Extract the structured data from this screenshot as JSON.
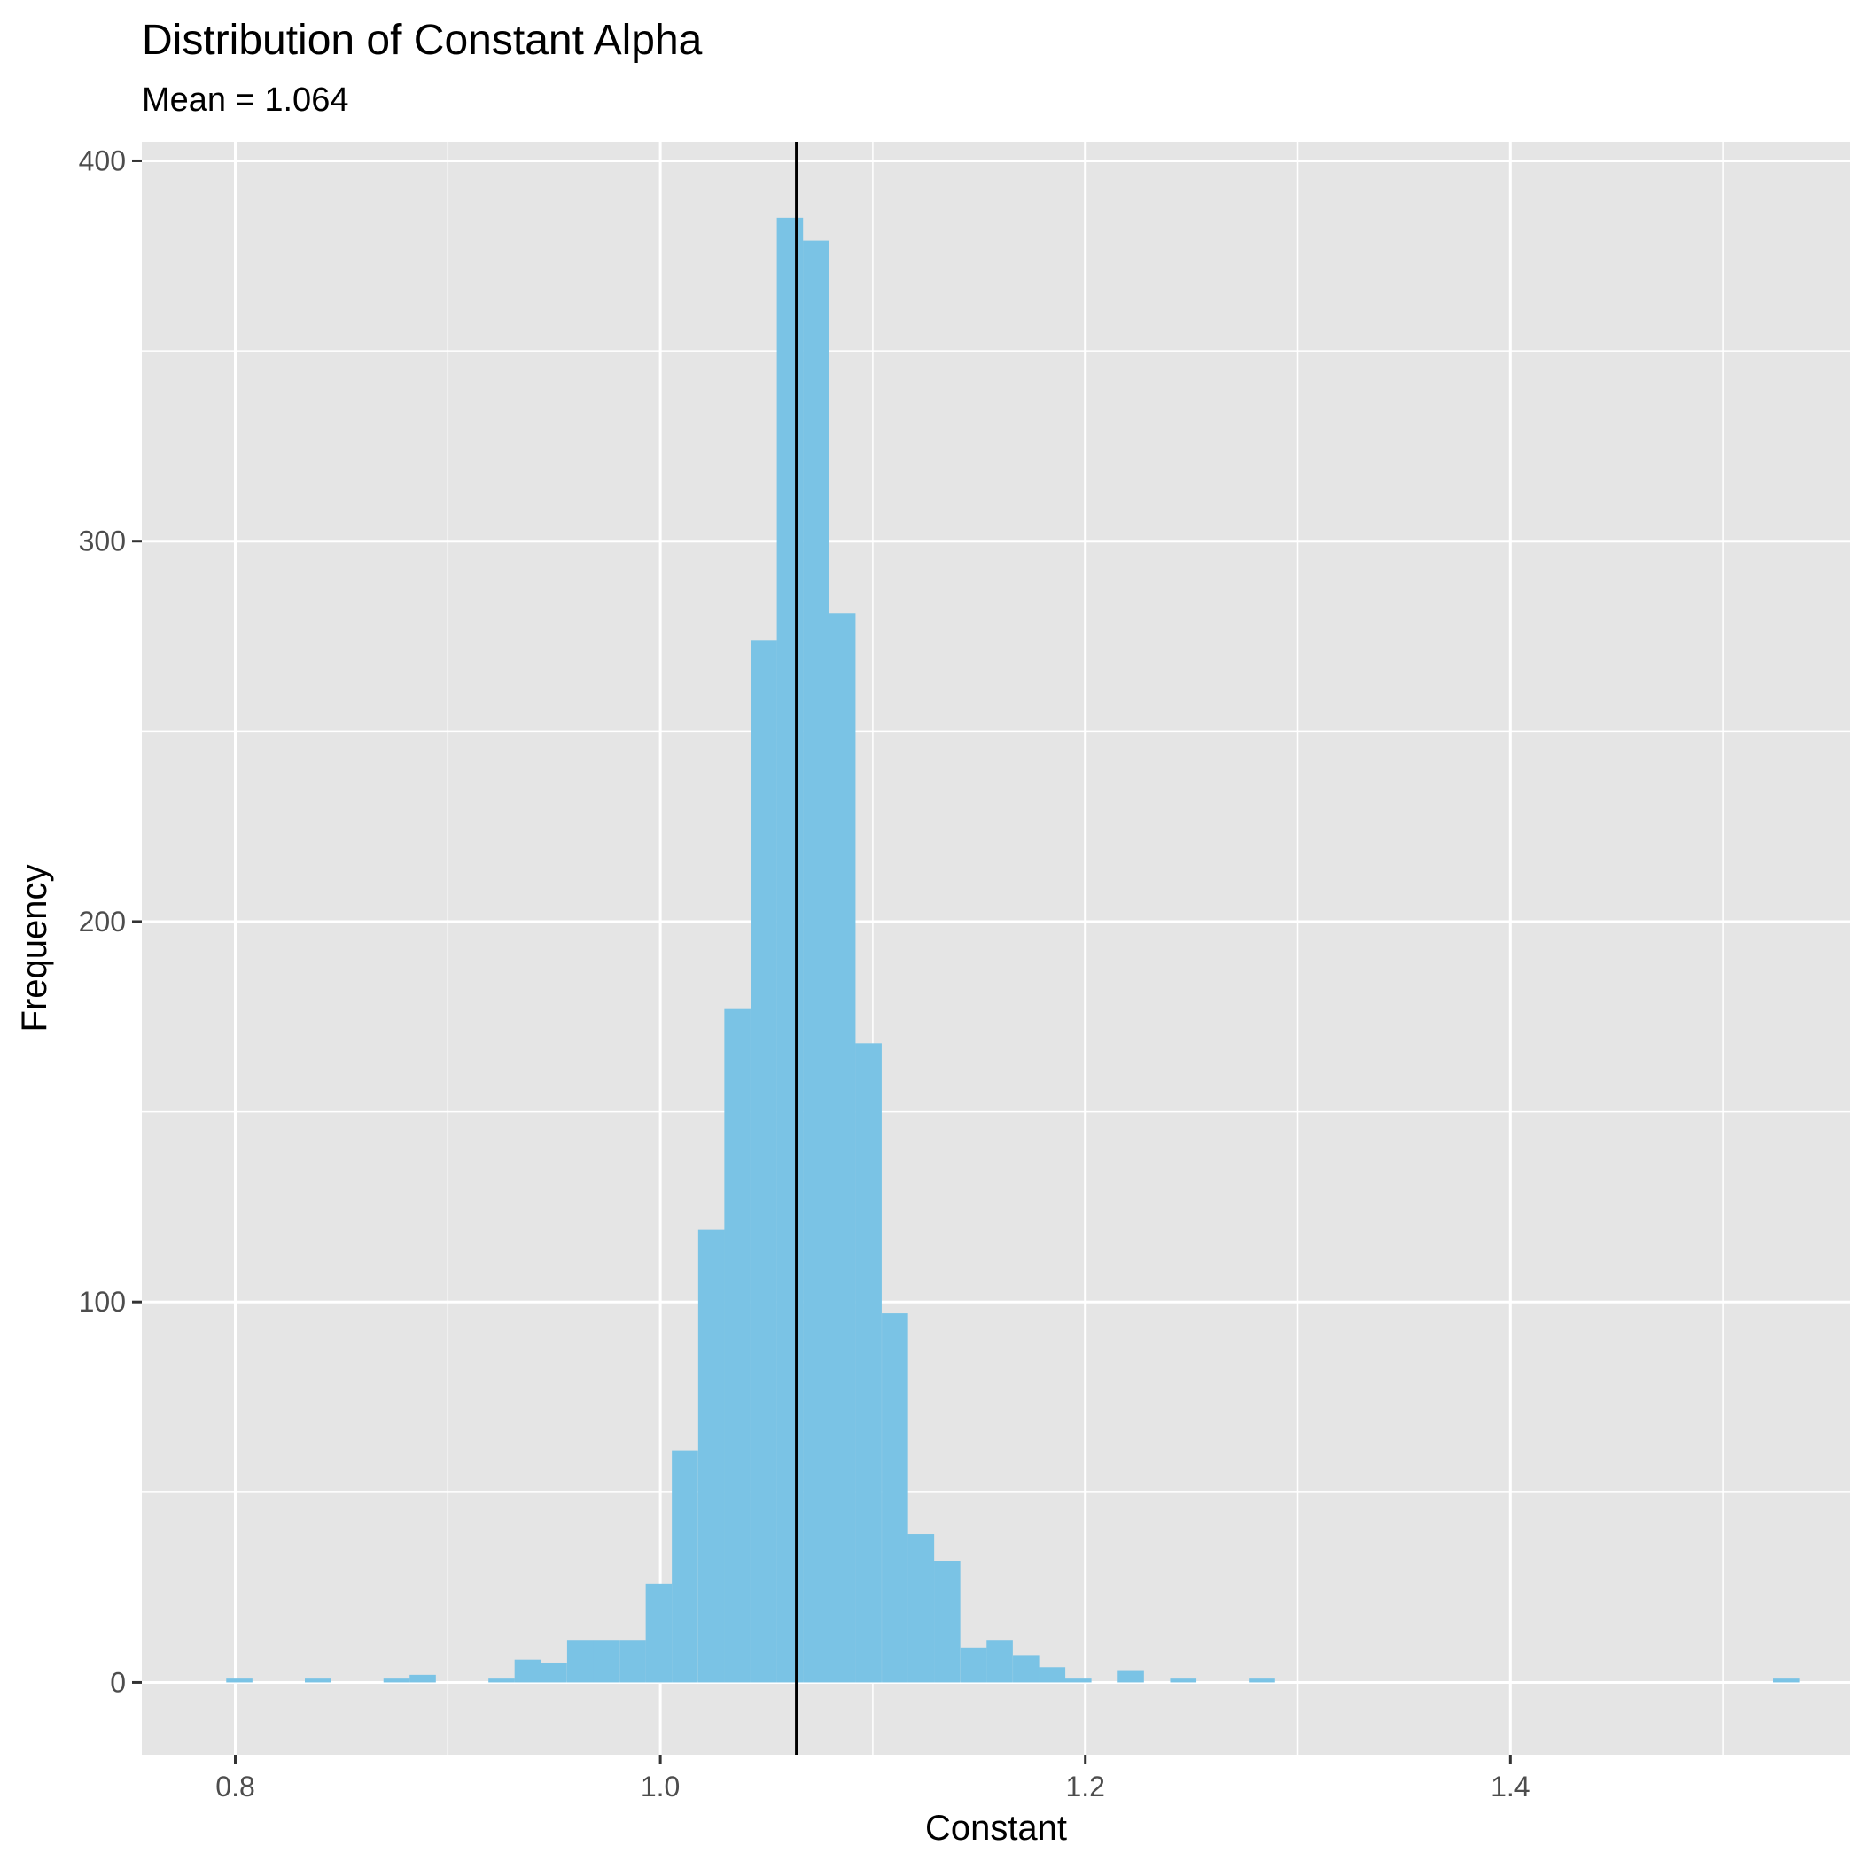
{
  "chart_data": {
    "type": "bar",
    "title": "Distribution of Constant Alpha",
    "subtitle": "Mean = 1.064",
    "xlabel": "Constant",
    "ylabel": "Frequency",
    "xlim": [
      0.756,
      1.56
    ],
    "ylim": [
      -19,
      405
    ],
    "x_ticks": [
      0.8,
      1.0,
      1.2,
      1.4
    ],
    "x_tick_labels": [
      "0.8",
      "1.0",
      "1.2",
      "1.4"
    ],
    "y_ticks": [
      0,
      100,
      200,
      300,
      400
    ],
    "y_tick_labels": [
      "0",
      "100",
      "200",
      "300",
      "400"
    ],
    "bin_width": 0.01234,
    "bins": [
      {
        "x": 0.8019,
        "count": 1
      },
      {
        "x": 0.8389,
        "count": 1
      },
      {
        "x": 0.8759,
        "count": 1
      },
      {
        "x": 0.8882,
        "count": 2
      },
      {
        "x": 0.9253,
        "count": 1
      },
      {
        "x": 0.9376,
        "count": 6
      },
      {
        "x": 0.9499,
        "count": 5
      },
      {
        "x": 0.9623,
        "count": 11
      },
      {
        "x": 0.9746,
        "count": 11
      },
      {
        "x": 0.987,
        "count": 11
      },
      {
        "x": 0.9993,
        "count": 26
      },
      {
        "x": 1.0116,
        "count": 61
      },
      {
        "x": 1.024,
        "count": 119
      },
      {
        "x": 1.0363,
        "count": 177
      },
      {
        "x": 1.0487,
        "count": 274
      },
      {
        "x": 1.061,
        "count": 385
      },
      {
        "x": 1.0733,
        "count": 379
      },
      {
        "x": 1.0857,
        "count": 281
      },
      {
        "x": 1.098,
        "count": 168
      },
      {
        "x": 1.1104,
        "count": 97
      },
      {
        "x": 1.1227,
        "count": 39
      },
      {
        "x": 1.135,
        "count": 32
      },
      {
        "x": 1.1474,
        "count": 9
      },
      {
        "x": 1.1597,
        "count": 11
      },
      {
        "x": 1.1721,
        "count": 7
      },
      {
        "x": 1.1844,
        "count": 4
      },
      {
        "x": 1.1967,
        "count": 1
      },
      {
        "x": 1.2214,
        "count": 3
      },
      {
        "x": 1.2461,
        "count": 1
      },
      {
        "x": 1.2831,
        "count": 1
      },
      {
        "x": 1.5299,
        "count": 1
      }
    ],
    "mean_line": 1.064,
    "colors": {
      "bar": "#7AC3E5",
      "panel": "#E5E5E5",
      "grid": "#FFFFFF",
      "mean_line": "#000000"
    },
    "grid": true,
    "legend": "none"
  }
}
